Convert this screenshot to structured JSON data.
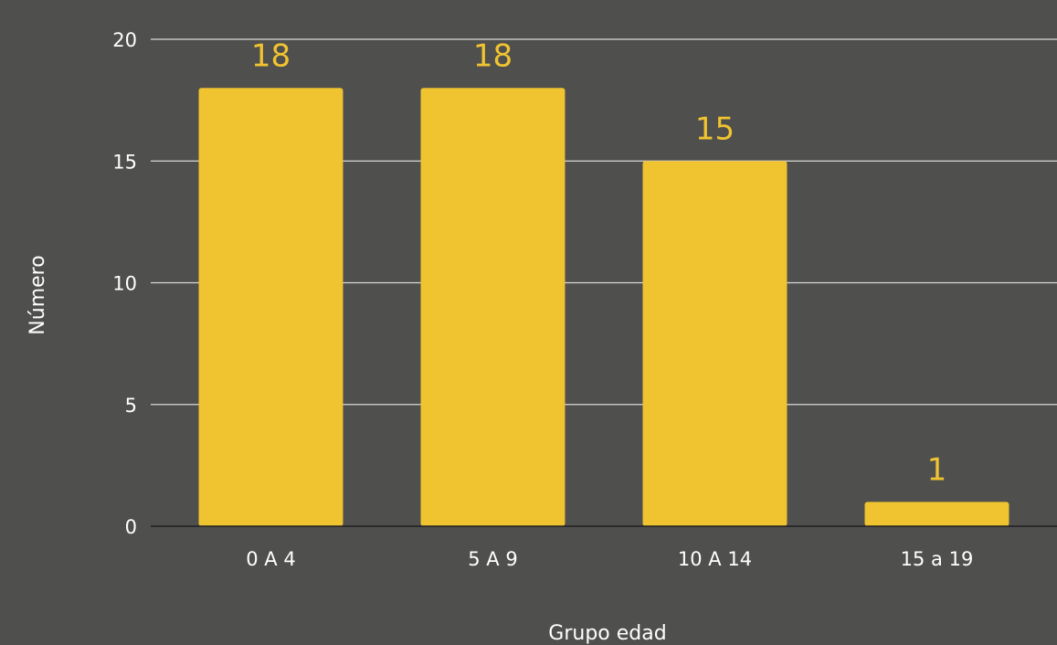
{
  "chart_data": {
    "type": "bar",
    "title": "",
    "xlabel": "Grupo edad",
    "ylabel": "Número",
    "categories": [
      "0 A 4",
      "5 A 9",
      "10 A 14",
      "15 a 19"
    ],
    "values": [
      18,
      18,
      15,
      1
    ],
    "ylim": [
      0,
      20
    ],
    "yticks": [
      0,
      5,
      10,
      15,
      20
    ],
    "grid": true,
    "data_labels": true,
    "colors": {
      "bar": "#f0c330",
      "background": "#4f4f4d",
      "gridline": "#d9d9d9",
      "text": "#ffffff",
      "data_label": "#f0c330"
    }
  }
}
